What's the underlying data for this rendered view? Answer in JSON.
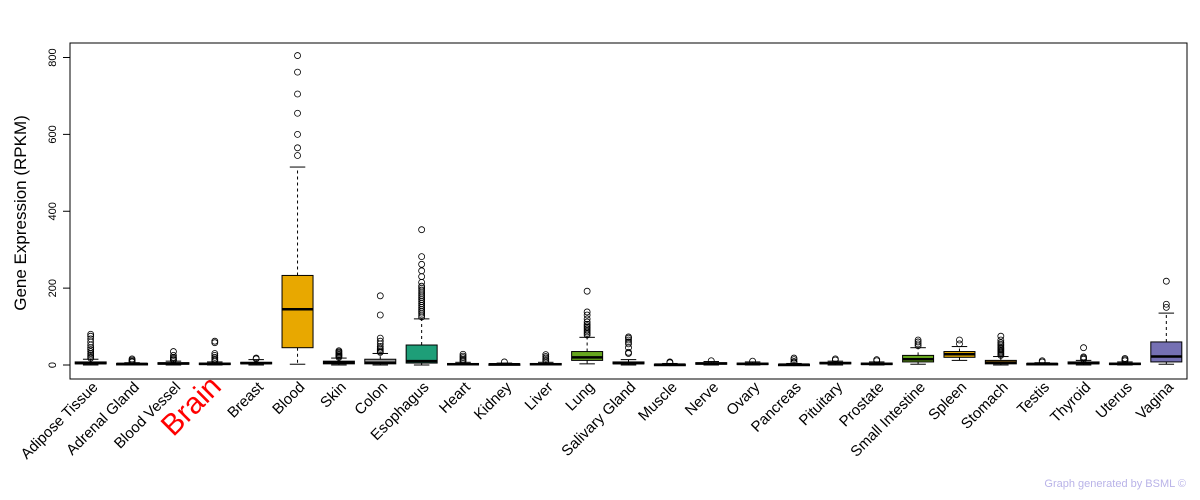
{
  "chart_data": {
    "type": "box",
    "title": "",
    "xlabel": "",
    "ylabel": "Gene Expression (RPKM)",
    "ylim": [
      -20,
      840
    ],
    "yticks": [
      0,
      200,
      400,
      600,
      800
    ],
    "grid": false,
    "highlight_category": "Brain",
    "highlight_color": "#ff0000",
    "categories": [
      "Adipose Tissue",
      "Adrenal Gland",
      "Blood Vessel",
      "Brain",
      "Breast",
      "Blood",
      "Skin",
      "Colon",
      "Esophagus",
      "Heart",
      "Kidney",
      "Liver",
      "Lung",
      "Salivary Gland",
      "Muscle",
      "Nerve",
      "Ovary",
      "Pancreas",
      "Pituitary",
      "Prostate",
      "Small Intestine",
      "Spleen",
      "Stomach",
      "Testis",
      "Thyroid",
      "Uterus",
      "Vagina"
    ],
    "boxes": [
      {
        "category": "Adipose Tissue",
        "color": "#ffffff",
        "whisker_low": 0,
        "q1": 3,
        "median": 5,
        "q3": 8,
        "whisker_high": 15,
        "outliers": [
          18,
          22,
          26,
          30,
          35,
          40,
          45,
          52,
          60,
          68,
          75,
          80
        ]
      },
      {
        "category": "Adrenal Gland",
        "color": "#ffffff",
        "whisker_low": 0,
        "q1": 2,
        "median": 3,
        "q3": 4,
        "whisker_high": 6,
        "outliers": [
          8,
          10,
          13,
          16
        ]
      },
      {
        "category": "Blood Vessel",
        "color": "#ffffff",
        "whisker_low": 0,
        "q1": 2,
        "median": 4,
        "q3": 6,
        "whisker_high": 10,
        "outliers": [
          12,
          14,
          17,
          20,
          25,
          35
        ]
      },
      {
        "category": "Brain",
        "color": "#ffffff",
        "whisker_low": 0,
        "q1": 2,
        "median": 3,
        "q3": 5,
        "whisker_high": 8,
        "outliers": [
          10,
          13,
          16,
          20,
          25,
          30,
          58,
          62
        ]
      },
      {
        "category": "Breast",
        "color": "#ffffff",
        "whisker_low": 0,
        "q1": 3,
        "median": 5,
        "q3": 7,
        "whisker_high": 14,
        "outliers": [
          16,
          18
        ]
      },
      {
        "category": "Blood",
        "color": "#e8a800",
        "whisker_low": 2,
        "q1": 45,
        "median": 145,
        "q3": 233,
        "whisker_high": 515,
        "outliers": [
          545,
          565,
          600,
          655,
          705,
          762,
          805
        ]
      },
      {
        "category": "Skin",
        "color": "#999999",
        "whisker_low": 0,
        "q1": 3,
        "median": 6,
        "q3": 10,
        "whisker_high": 18,
        "outliers": [
          20,
          23,
          26,
          28,
          31,
          34,
          37
        ]
      },
      {
        "category": "Colon",
        "color": "#999999",
        "whisker_low": 0,
        "q1": 3,
        "median": 6,
        "q3": 15,
        "whisker_high": 30,
        "outliers": [
          33,
          36,
          40,
          44,
          48,
          55,
          62,
          70,
          130,
          180
        ]
      },
      {
        "category": "Esophagus",
        "color": "#1e9e78",
        "whisker_low": 0,
        "q1": 5,
        "median": 10,
        "q3": 52,
        "whisker_high": 120,
        "outliers": [
          125,
          130,
          135,
          140,
          145,
          150,
          155,
          160,
          165,
          170,
          175,
          180,
          185,
          190,
          195,
          200,
          205,
          215,
          230,
          245,
          262,
          282,
          352
        ]
      },
      {
        "category": "Heart",
        "color": "#ffffff",
        "whisker_low": 0,
        "q1": 1,
        "median": 2,
        "q3": 4,
        "whisker_high": 7,
        "outliers": [
          9,
          12,
          15,
          19,
          23,
          28
        ]
      },
      {
        "category": "Kidney",
        "color": "#ffffff",
        "whisker_low": 0,
        "q1": 1,
        "median": 2,
        "q3": 3,
        "whisker_high": 5,
        "outliers": [
          8
        ]
      },
      {
        "category": "Liver",
        "color": "#ffffff",
        "whisker_low": 0,
        "q1": 1,
        "median": 2,
        "q3": 4,
        "whisker_high": 7,
        "outliers": [
          10,
          14,
          18,
          22,
          27
        ]
      },
      {
        "category": "Lung",
        "color": "#66a61e",
        "whisker_low": 3,
        "q1": 12,
        "median": 20,
        "q3": 35,
        "whisker_high": 72,
        "outliers": [
          78,
          82,
          86,
          90,
          94,
          98,
          102,
          106,
          112,
          120,
          130,
          138,
          192
        ]
      },
      {
        "category": "Salivary Gland",
        "color": "#ffffff",
        "whisker_low": 0,
        "q1": 3,
        "median": 5,
        "q3": 8,
        "whisker_high": 14,
        "outliers": [
          30,
          33,
          45,
          55,
          60,
          65,
          70,
          73
        ]
      },
      {
        "category": "Muscle",
        "color": "#ffffff",
        "whisker_low": 0,
        "q1": 0.5,
        "median": 1,
        "q3": 2,
        "whisker_high": 4,
        "outliers": [
          6,
          8
        ]
      },
      {
        "category": "Nerve",
        "color": "#ffffff",
        "whisker_low": 0,
        "q1": 2,
        "median": 4,
        "q3": 6,
        "whisker_high": 9,
        "outliers": [
          11
        ]
      },
      {
        "category": "Ovary",
        "color": "#ffffff",
        "whisker_low": 0,
        "q1": 2,
        "median": 3,
        "q3": 5,
        "whisker_high": 8,
        "outliers": [
          10
        ]
      },
      {
        "category": "Pancreas",
        "color": "#ffffff",
        "whisker_low": 0,
        "q1": 0.5,
        "median": 1,
        "q3": 2,
        "whisker_high": 4,
        "outliers": [
          6,
          9,
          14,
          18
        ]
      },
      {
        "category": "Pituitary",
        "color": "#ffffff",
        "whisker_low": 0,
        "q1": 3,
        "median": 5,
        "q3": 7,
        "whisker_high": 10,
        "outliers": [
          13,
          16
        ]
      },
      {
        "category": "Prostate",
        "color": "#ffffff",
        "whisker_low": 0,
        "q1": 2,
        "median": 3,
        "q3": 5,
        "whisker_high": 8,
        "outliers": [
          11,
          14
        ]
      },
      {
        "category": "Small Intestine",
        "color": "#66a61e",
        "whisker_low": 2,
        "q1": 8,
        "median": 15,
        "q3": 25,
        "whisker_high": 45,
        "outliers": [
          50,
          55,
          60,
          65
        ]
      },
      {
        "category": "Spleen",
        "color": "#e6ab02",
        "whisker_low": 12,
        "q1": 20,
        "median": 28,
        "q3": 35,
        "whisker_high": 48,
        "outliers": [
          55,
          65
        ]
      },
      {
        "category": "Stomach",
        "color": "#a6761d",
        "whisker_low": 0,
        "q1": 3,
        "median": 6,
        "q3": 12,
        "whisker_high": 22,
        "outliers": [
          25,
          28,
          31,
          34,
          37,
          40,
          43,
          46,
          50,
          54,
          58,
          65,
          75
        ]
      },
      {
        "category": "Testis",
        "color": "#ffffff",
        "whisker_low": 0,
        "q1": 2,
        "median": 3,
        "q3": 4,
        "whisker_high": 6,
        "outliers": [
          8,
          11
        ]
      },
      {
        "category": "Thyroid",
        "color": "#ffffff",
        "whisker_low": 0,
        "q1": 3,
        "median": 5,
        "q3": 8,
        "whisker_high": 12,
        "outliers": [
          15,
          18,
          21,
          45
        ]
      },
      {
        "category": "Uterus",
        "color": "#ffffff",
        "whisker_low": 0,
        "q1": 2,
        "median": 3,
        "q3": 5,
        "whisker_high": 8,
        "outliers": [
          11,
          14,
          17
        ]
      },
      {
        "category": "Vagina",
        "color": "#7570b3",
        "whisker_low": 2,
        "q1": 8,
        "median": 22,
        "q3": 60,
        "whisker_high": 135,
        "outliers": [
          150,
          158,
          218
        ]
      }
    ]
  },
  "footer": {
    "credit": "Graph generated by BSML ©"
  }
}
